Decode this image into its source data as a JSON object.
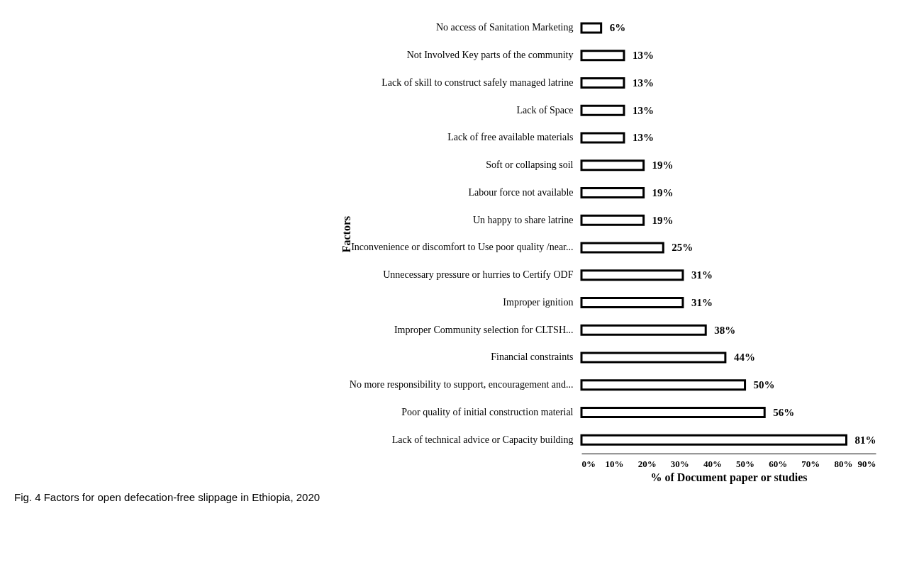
{
  "chart_data": {
    "type": "bar",
    "orientation": "horizontal",
    "xlabel": "% of  Document paper or studies",
    "ylabel": "Factors",
    "categories": [
      "No access of Sanitation Marketing",
      "Not Involved Key parts of the community",
      "Lack of skill to construct safely managed latrine",
      "Lack of Space",
      "Lack of free available  materials",
      "Soft or collapsing soil",
      "Labour force not available",
      "Un happy to share latrine",
      "Inconvenience or discomfort to Use poor quality /near...",
      "Unnecessary pressure or hurries to Certify ODF",
      "Improper ignition",
      "Improper Community selection for CLTSH...",
      "Financial constraints",
      "No more responsibility to support, encouragement and...",
      "Poor quality of initial construction material",
      "Lack of technical advice or Capacity building"
    ],
    "values": [
      6,
      13,
      13,
      13,
      13,
      19,
      19,
      19,
      25,
      31,
      31,
      38,
      44,
      50,
      56,
      81
    ],
    "value_labels": [
      "6%",
      "13%",
      "13%",
      "13%",
      "13%",
      "19%",
      "19%",
      "19%",
      "25%",
      "31%",
      "31%",
      "38%",
      "44%",
      "50%",
      "56%",
      "81%"
    ],
    "color": "#ffffff",
    "xlim": [
      0,
      90
    ],
    "xticks": [
      {
        "value": 0,
        "label": "0%"
      },
      {
        "value": 10,
        "label": "10%"
      },
      {
        "value": 20,
        "label": "20%"
      },
      {
        "value": 30,
        "label": "30%"
      },
      {
        "value": 40,
        "label": "40%"
      },
      {
        "value": 50,
        "label": "50%"
      },
      {
        "value": 60,
        "label": "60%"
      },
      {
        "value": 70,
        "label": "70%"
      },
      {
        "value": 80,
        "label": "80%"
      },
      {
        "value": 90,
        "label": "90%"
      }
    ],
    "grid": false,
    "annotations": [
      "Fig. 4 Factors for open defecation-free slippage in Ethiopia, 2020"
    ]
  }
}
